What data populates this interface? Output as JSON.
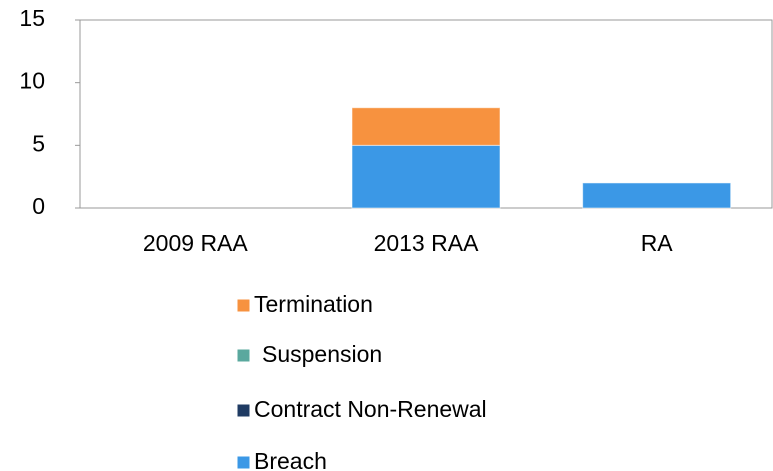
{
  "chart_data": {
    "type": "stacked_bar",
    "categories": [
      "2009 RAA",
      "2013 RAA",
      "RA"
    ],
    "series": [
      {
        "name": "Breach",
        "color": "#3b98e6",
        "values": [
          0,
          5,
          2
        ]
      },
      {
        "name": "Contract Non-Renewal",
        "color": "#1f3b63",
        "values": [
          0,
          0,
          0
        ]
      },
      {
        "name": "Suspension",
        "color": "#5aa89e",
        "values": [
          0,
          0,
          0
        ]
      },
      {
        "name": "Termination",
        "color": "#f7923f",
        "values": [
          0,
          3,
          0
        ]
      }
    ],
    "ylim": [
      0,
      15
    ],
    "yticks": [
      0,
      5,
      10,
      15
    ],
    "legend": "bottom"
  }
}
